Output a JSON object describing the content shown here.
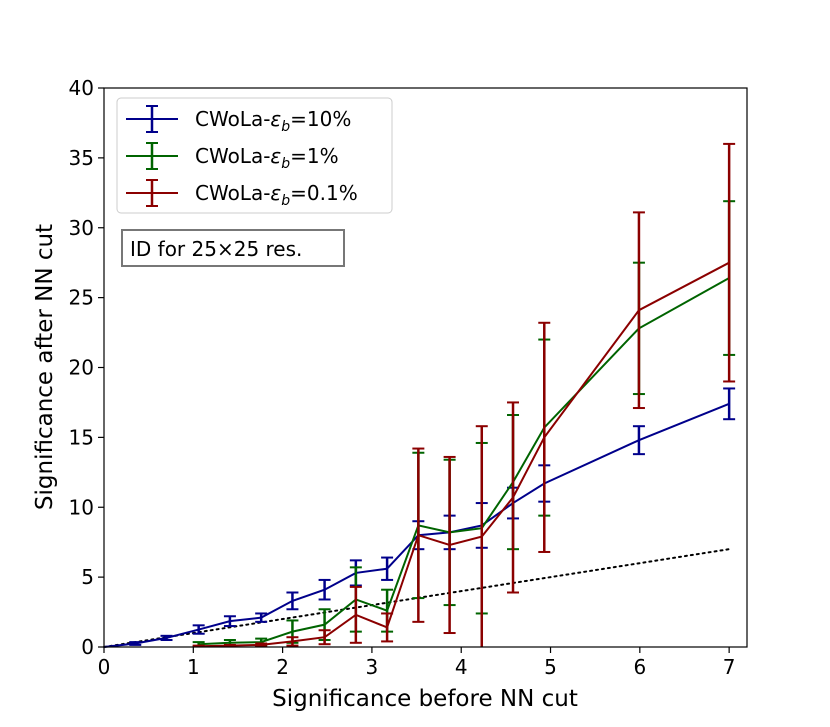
{
  "chart_data": {
    "type": "line",
    "xlabel": "Significance before NN cut",
    "ylabel": "Significance after NN cut",
    "xlim": [
      0,
      7.2
    ],
    "ylim": [
      0,
      40
    ],
    "xticks": [
      0,
      1,
      2,
      3,
      4,
      5,
      6,
      7
    ],
    "yticks": [
      0,
      5,
      10,
      15,
      20,
      25,
      30,
      35,
      40
    ],
    "grid": false,
    "legend_position": "top-left",
    "annotation": "ID for 25×25 res.",
    "reference_line": {
      "style": "dotted",
      "color": "#000000",
      "x": [
        0,
        7
      ],
      "y": [
        0,
        7
      ]
    },
    "series": [
      {
        "name": "CWoLa-εb=10%",
        "legend_prefix": "CWoLa-",
        "legend_symbol": "ε",
        "legend_subscript": "b",
        "legend_suffix": "=10%",
        "color": "#00008b",
        "x": [
          0,
          0.35,
          0.7,
          1.06,
          1.41,
          1.76,
          2.11,
          2.47,
          2.82,
          3.17,
          3.52,
          3.87,
          4.23,
          4.58,
          4.93,
          5.99,
          7.0
        ],
        "y": [
          0,
          0.25,
          0.65,
          1.25,
          1.85,
          2.1,
          3.3,
          4.1,
          5.3,
          5.6,
          8.0,
          8.2,
          8.7,
          10.3,
          11.7,
          14.8,
          17.4
        ],
        "err": [
          0,
          0.1,
          0.15,
          0.3,
          0.35,
          0.3,
          0.6,
          0.7,
          0.9,
          0.8,
          1.0,
          1.2,
          1.6,
          1.1,
          1.3,
          1.0,
          1.1
        ]
      },
      {
        "name": "CWoLa-εb=1%",
        "legend_prefix": "CWoLa-",
        "legend_symbol": "ε",
        "legend_subscript": "b",
        "legend_suffix": "=1%",
        "color": "#006400",
        "x": [
          1.06,
          1.41,
          1.76,
          2.11,
          2.47,
          2.82,
          3.17,
          3.52,
          3.87,
          4.23,
          4.58,
          4.93,
          5.99,
          7.0
        ],
        "y": [
          0.2,
          0.3,
          0.35,
          1.1,
          1.6,
          3.4,
          2.6,
          8.7,
          8.2,
          8.5,
          11.8,
          15.7,
          22.8,
          26.4
        ],
        "err": [
          0.15,
          0.2,
          0.25,
          0.8,
          1.1,
          2.3,
          1.5,
          5.2,
          5.2,
          6.1,
          4.8,
          6.3,
          4.7,
          5.5
        ]
      },
      {
        "name": "CWoLa-εb=0.1%",
        "legend_prefix": "CWoLa-",
        "legend_symbol": "ε",
        "legend_subscript": "b",
        "legend_suffix": "=0.1%",
        "color": "#8b0000",
        "x": [
          1.06,
          1.41,
          1.76,
          2.11,
          2.47,
          2.82,
          3.17,
          3.52,
          3.87,
          4.23,
          4.58,
          4.93,
          5.99,
          7.0
        ],
        "y": [
          0.05,
          0.1,
          0.15,
          0.4,
          0.7,
          2.3,
          1.4,
          8.0,
          7.3,
          7.9,
          10.7,
          15.0,
          24.1,
          27.5
        ],
        "err": [
          0.05,
          0.05,
          0.1,
          0.3,
          0.5,
          2.0,
          1.0,
          6.2,
          6.3,
          7.9,
          6.8,
          8.2,
          7.0,
          8.5
        ]
      }
    ]
  }
}
